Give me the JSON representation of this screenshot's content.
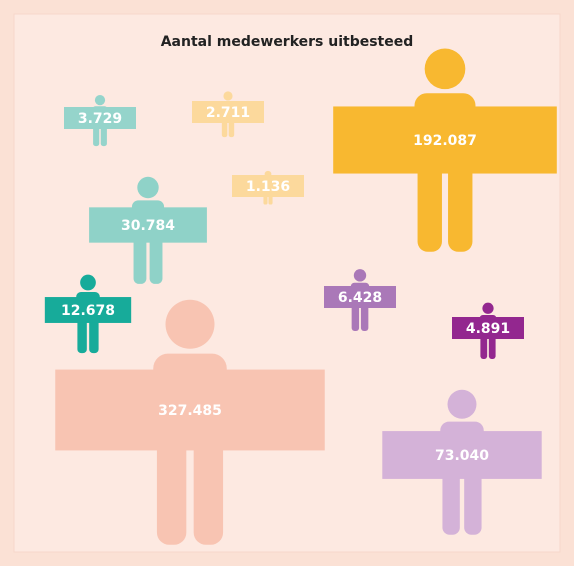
{
  "chart_data": {
    "type": "pictogram",
    "title": "Aantal medewerkers uitbesteed",
    "values": [
      3729,
      2711,
      192087,
      1136,
      30784,
      12678,
      6428,
      4891,
      327485,
      73040
    ],
    "value_labels": [
      "3.729",
      "2.711",
      "192.087",
      "1.136",
      "30.784",
      "12.678",
      "6.428",
      "4.891",
      "327.485",
      "73.040"
    ],
    "colors": [
      "#95d4cb",
      "#fcd99c",
      "#f8b830",
      "#fcd99c",
      "#8fd2c8",
      "#17ab9a",
      "#aa78b8",
      "#93278f",
      "#f8c4b2",
      "#d4b2d8"
    ]
  }
}
